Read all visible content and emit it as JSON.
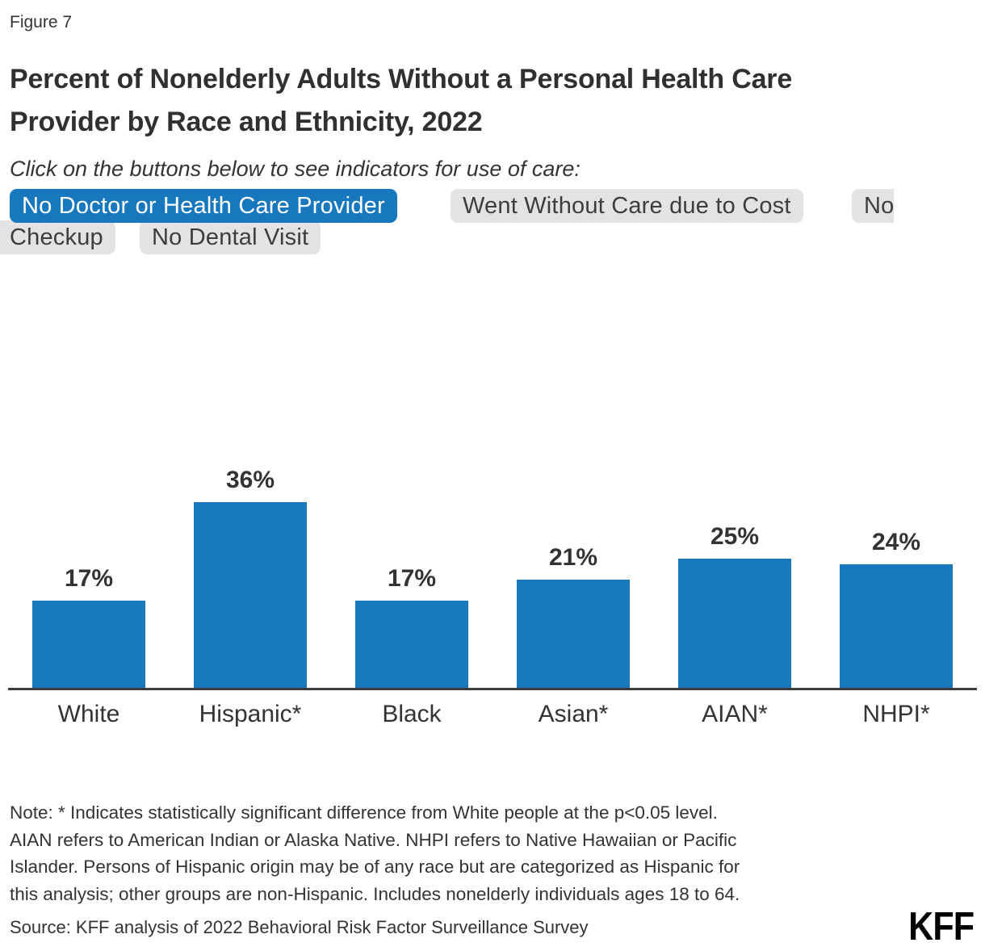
{
  "figure_label": "Figure 7",
  "title_lines": [
    "Percent of Nonelderly Adults Without a Personal Health Care",
    "Provider by Race and Ethnicity, 2022"
  ],
  "instruction": "Click on the buttons below to see indicators for use of care:",
  "care_buttons": {
    "items": [
      {
        "label": "No Doctor or Health Care Provider",
        "active": true
      },
      {
        "label": "Went Without Care due to Cost",
        "active": false
      },
      {
        "label": "No Checkup",
        "active": false
      },
      {
        "label": "No Dental Visit",
        "active": false
      }
    ]
  },
  "chart_data": {
    "type": "bar",
    "title": "Percent of Nonelderly Adults Without a Personal Health Care Provider by Race and Ethnicity, 2022",
    "categories": [
      "White",
      "Hispanic*",
      "Black",
      "Asian*",
      "AIAN*",
      "NHPI*"
    ],
    "values": [
      17,
      36,
      17,
      21,
      25,
      24
    ],
    "value_label_format": "percent",
    "xlabel": "",
    "ylabel": "",
    "ylim": [
      0,
      40
    ],
    "grid": false,
    "legend": "none",
    "bar_color": "#1878be"
  },
  "note_lines": [
    "Note: * Indicates statistically significant difference from White people at the p<0.05 level.",
    "AIAN refers to American Indian or Alaska Native. NHPI refers to Native Hawaiian or Pacific",
    "Islander. Persons of Hispanic origin may be of any race but are categorized as Hispanic for",
    "this analysis; other groups are non-Hispanic. Includes nonelderly individuals ages 18 to 64."
  ],
  "source": "Source: KFF analysis of 2022 Behavioral Risk Factor Surveillance Survey",
  "logo": "KFF",
  "colors": {
    "accent": "#1878be",
    "button_bg": "#e3e3e3",
    "button_text": "#3d3d3d",
    "text": "#333333",
    "axis": "#3c3c3c"
  }
}
